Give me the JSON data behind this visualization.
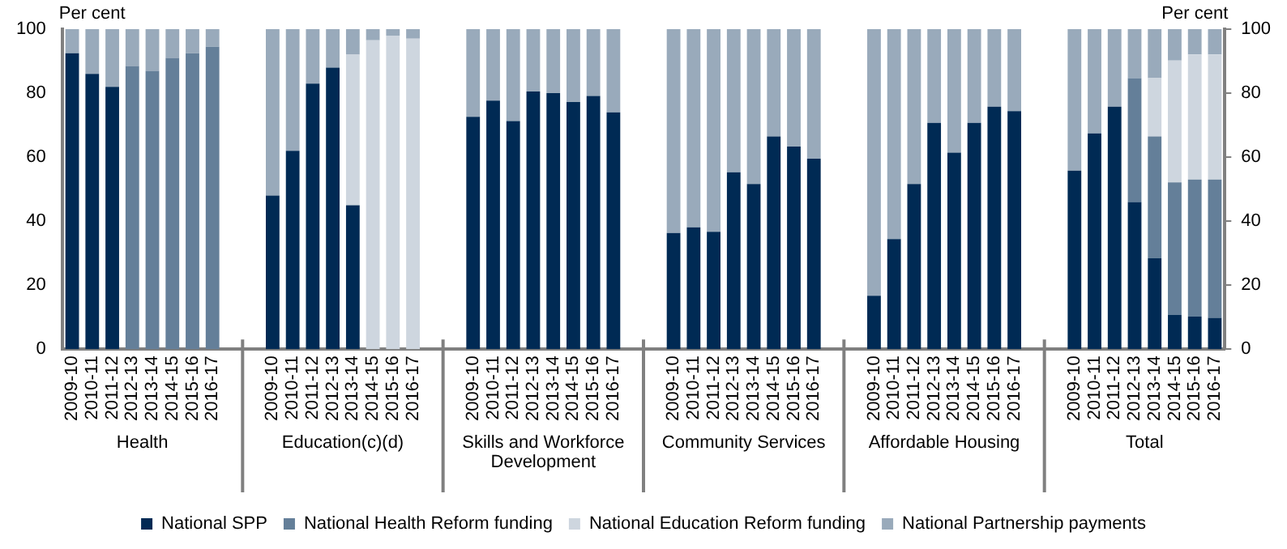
{
  "chart_data": {
    "type": "bar",
    "stacked": true,
    "legend": "bottom",
    "ylabel": "Per cent",
    "y2label": "Per cent",
    "categories": [
      "2009-10",
      "2010-11",
      "2011-12",
      "2012-13",
      "2013-14",
      "2014-15",
      "2015-16",
      "2016-17",
      null,
      null,
      "2009-10",
      "2010-11",
      "2011-12",
      "2012-13",
      "2013-14",
      "2014-15",
      "2015-16",
      "2016-17",
      null,
      null,
      "2009-10",
      "2010-11",
      "2011-12",
      "2012-13",
      "2013-14",
      "2014-15",
      "2015-16",
      "2016-17",
      null,
      null,
      "2009-10",
      "2010-11",
      "2011-12",
      "2012-13",
      "2013-14",
      "2014-15",
      "2015-16",
      "2016-17",
      null,
      null,
      "2009-10",
      "2010-11",
      "2011-12",
      "2012-13",
      "2013-14",
      "2014-15",
      "2015-16",
      "2016-17",
      null,
      null,
      "2009-10",
      "2010-11",
      "2011-12",
      "2012-13",
      "2013-14",
      "2014-15",
      "2015-16",
      "2016-17"
    ],
    "series": [
      {
        "name": "National SPP",
        "color": "#002a54",
        "values": [
          92.5,
          86,
          82,
          0,
          0,
          0,
          0,
          0,
          null,
          null,
          48,
          62,
          83,
          88,
          45,
          0,
          0,
          0,
          null,
          null,
          72.6,
          77.7,
          71.3,
          80.5,
          80,
          77.2,
          79.1,
          74,
          null,
          null,
          36.3,
          38.1,
          36.7,
          55.3,
          51.6,
          66.5,
          63.3,
          59.5,
          null,
          null,
          16.7,
          34.4,
          51.6,
          70.7,
          61.4,
          70.7,
          75.8,
          74.4,
          null,
          null,
          55.8,
          67.4,
          75.8,
          46,
          28.4,
          10.7,
          10.2,
          9.8
        ]
      },
      {
        "name": "National Health Reform funding",
        "color": "#647f99",
        "values": [
          0,
          0,
          0,
          88.5,
          87,
          91,
          92.5,
          94.5,
          null,
          null,
          0,
          0,
          0,
          0,
          0,
          0,
          0,
          0,
          null,
          null,
          0,
          0,
          0,
          0,
          0,
          0,
          0,
          0,
          null,
          null,
          0,
          0,
          0,
          0,
          0,
          0,
          0,
          0,
          null,
          null,
          0,
          0,
          0,
          0,
          0,
          0,
          0,
          0,
          null,
          null,
          0,
          0,
          0,
          38.7,
          38.1,
          41.4,
          42.8,
          43.2
        ]
      },
      {
        "name": "National Education Reform funding",
        "color": "#ced6df",
        "values": [
          0,
          0,
          0,
          0,
          0,
          0,
          0,
          0,
          null,
          null,
          0,
          0,
          0,
          0,
          47,
          96.5,
          98,
          97,
          null,
          null,
          0,
          0,
          0,
          0,
          0,
          0,
          0,
          0,
          null,
          null,
          0,
          0,
          0,
          0,
          0,
          0,
          0,
          0,
          null,
          null,
          0,
          0,
          0,
          0,
          0,
          0,
          0,
          0,
          null,
          null,
          0,
          0,
          0,
          0,
          18.2,
          38.1,
          39.1,
          39.1
        ]
      },
      {
        "name": "National Partnership payments",
        "color": "#99aabb",
        "values": [
          7.5,
          14,
          18,
          11.5,
          13,
          9,
          7.5,
          5.5,
          null,
          null,
          52,
          38,
          17,
          12,
          8,
          3.5,
          2,
          3,
          null,
          null,
          27.4,
          22.3,
          28.7,
          19.5,
          20,
          22.8,
          20.9,
          26,
          null,
          null,
          63.7,
          61.9,
          63.3,
          44.7,
          48.4,
          33.5,
          36.7,
          40.5,
          null,
          null,
          83.3,
          65.6,
          48.4,
          29.3,
          38.6,
          29.3,
          24.2,
          25.6,
          null,
          null,
          44.2,
          32.6,
          24.2,
          15.3,
          15.3,
          9.8,
          7.9,
          7.9
        ]
      }
    ],
    "ylim": [
      0,
      100
    ],
    "yticks": [
      0,
      20,
      40,
      60,
      80,
      100
    ],
    "y2lim": [
      0,
      100
    ],
    "y2ticks": [
      0,
      20,
      40,
      60,
      80,
      100
    ],
    "annotations": [
      "Health",
      "Education(c)(d)",
      "Skills and Workforce Development",
      "Community Services",
      "Affordable Housing",
      "Total"
    ]
  }
}
